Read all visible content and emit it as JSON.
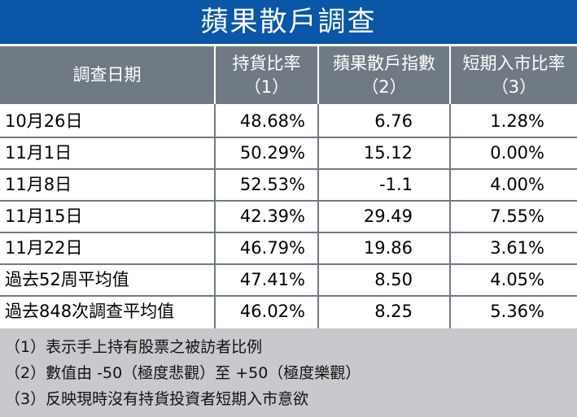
{
  "title": "蘋果散戶調查",
  "headers": {
    "date": "調查日期",
    "holding": {
      "line1": "持貨比率",
      "line2": "（1）"
    },
    "index": {
      "line1": "蘋果散戶指數",
      "line2": "（2）"
    },
    "short": {
      "line1": "短期入市比率",
      "line2": "（3）"
    }
  },
  "rows": [
    {
      "date": "10月26日",
      "holding": "48.68%",
      "index": "6.76",
      "short": "1.28%"
    },
    {
      "date": "11月1日",
      "holding": "50.29%",
      "index": "15.12",
      "short": "0.00%"
    },
    {
      "date": "11月8日",
      "holding": "52.53%",
      "index": "-1.1",
      "short": "4.00%"
    },
    {
      "date": "11月15日",
      "holding": "42.39%",
      "index": "29.49",
      "short": "7.55%"
    },
    {
      "date": "11月22日",
      "holding": "46.79%",
      "index": "19.86",
      "short": "3.61%"
    },
    {
      "date": "過去52周平均值",
      "holding": "47.41%",
      "index": "8.50",
      "short": "4.05%"
    },
    {
      "date": "過去848次調查平均值",
      "holding": "46.02%",
      "index": "8.25",
      "short": "5.36%"
    }
  ],
  "notes": [
    "（1）表示手上持有股票之被訪者比例",
    "（2）數值由 -50（極度悲觀）至 +50（極度樂觀）",
    "（3）反映現時沒有持貨投資者短期入市意欲"
  ],
  "colors": {
    "title_bg": "#0a56a7",
    "header_bg": "#707a84",
    "notes_bg": "#c7c9cc"
  }
}
